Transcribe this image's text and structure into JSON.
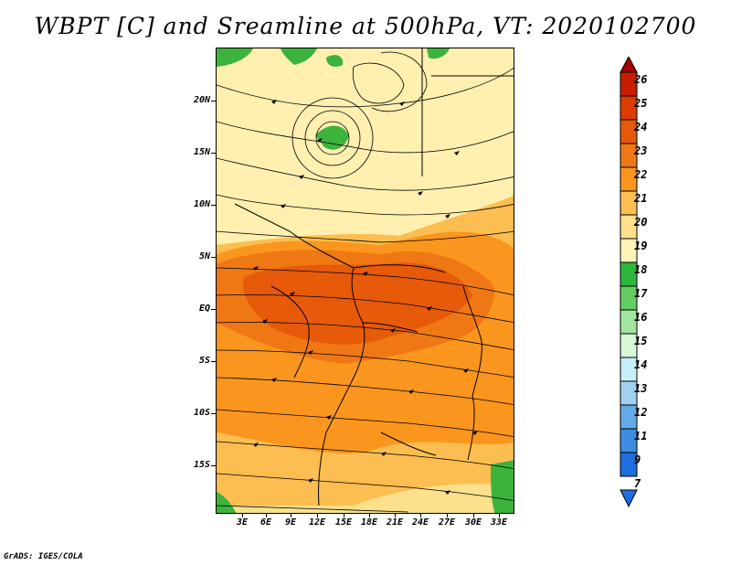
{
  "title": "WBPT [C] and Sreamline at 500hPa, VT: 2020102700",
  "footer": "GrADS: IGES/COLA",
  "lat_labels": [
    "20N",
    "15N",
    "10N",
    "5N",
    "EQ",
    "5S",
    "10S",
    "15S"
  ],
  "lon_labels": [
    "3E",
    "6E",
    "9E",
    "12E",
    "15E",
    "18E",
    "21E",
    "24E",
    "27E",
    "30E",
    "33E"
  ],
  "colorbar": {
    "labels": [
      "26",
      "25",
      "24",
      "23",
      "22",
      "21",
      "20",
      "19",
      "18",
      "17",
      "16",
      "15",
      "14",
      "13",
      "12",
      "11",
      "9",
      "7"
    ],
    "colors": [
      "#a50000",
      "#c81e00",
      "#dc3c00",
      "#e65a0a",
      "#f07814",
      "#fa961e",
      "#fcbe50",
      "#fde08c",
      "#fff3b8",
      "#2db83c",
      "#64cc64",
      "#a0e6a0",
      "#d8f8d8",
      "#c8eef8",
      "#a0d2f0",
      "#64aae6",
      "#3c8ce0",
      "#1e6edc",
      "#0050c8"
    ]
  },
  "colors": {
    "cool_green": "#3cb43c",
    "warm_yellow": "#fde08c",
    "warm_orange": "#f07814",
    "hot_red": "#e65a0a"
  }
}
